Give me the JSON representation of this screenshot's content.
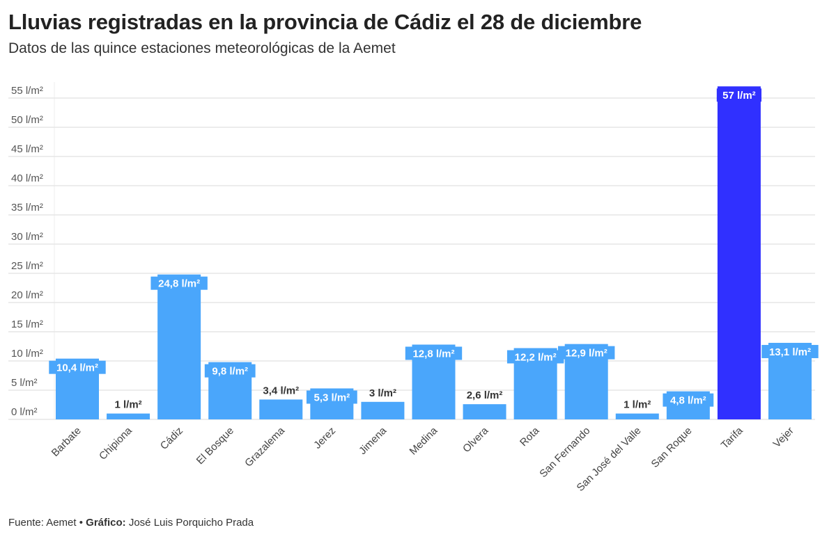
{
  "header": {
    "title": "Lluvias registradas en la provincia de Cádiz el 28 de diciembre",
    "subtitle": "Datos de las quince estaciones meteorológicas de la Aemet"
  },
  "footer": {
    "source": "Fuente: Aemet • ",
    "graphic_label": "Gráfico:",
    "author": " José Luis Porquicho Prada"
  },
  "colors": {
    "bar": "#4aa6fb",
    "highlight": "#3030ff",
    "grid": "#e6e6e6"
  },
  "chart_data": {
    "type": "bar",
    "title": "Lluvias registradas en la provincia de Cádiz el 28 de diciembre",
    "xlabel": "",
    "ylabel": "",
    "unit": "l/m²",
    "ylim": [
      0,
      57
    ],
    "yticks": [
      0,
      5,
      10,
      15,
      20,
      25,
      30,
      35,
      40,
      45,
      50,
      55
    ],
    "ytick_labels": [
      "0 l/m²",
      "5 l/m²",
      "10 l/m²",
      "15 l/m²",
      "20 l/m²",
      "25 l/m²",
      "30 l/m²",
      "35 l/m²",
      "40 l/m²",
      "45 l/m²",
      "50 l/m²",
      "55 l/m²"
    ],
    "grid": true,
    "categories": [
      "Barbate",
      "Chipiona",
      "Cádiz",
      "El Bosque",
      "Grazalema",
      "Jerez",
      "Jimena",
      "Medina",
      "Olvera",
      "Rota",
      "San Fernando",
      "San José del Valle",
      "San Roque",
      "Tarifa",
      "Vejer"
    ],
    "values": [
      10.4,
      1,
      24.8,
      9.8,
      3.4,
      5.3,
      3,
      12.8,
      2.6,
      12.2,
      12.9,
      1,
      4.8,
      57,
      13.1
    ],
    "data_labels": [
      "10,4 l/m²",
      "1 l/m²",
      "24,8 l/m²",
      "9,8 l/m²",
      "3,4 l/m²",
      "5,3 l/m²",
      "3 l/m²",
      "12,8 l/m²",
      "2,6 l/m²",
      "12,2 l/m²",
      "12,9 l/m²",
      "1 l/m²",
      "4,8 l/m²",
      "57 l/m²",
      "13,1 l/m²"
    ],
    "highlighted": [
      "Tarifa"
    ]
  }
}
